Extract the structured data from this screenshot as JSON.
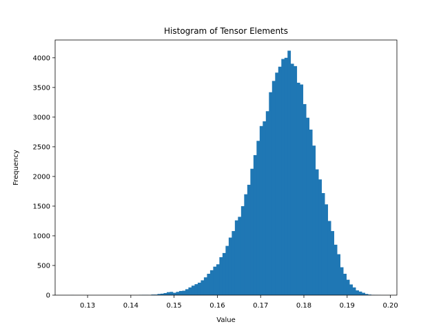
{
  "chart_data": {
    "type": "bar",
    "title": "Histogram of Tensor Elements",
    "xlabel": "Value",
    "ylabel": "Frequency",
    "xlim": [
      0.1225,
      0.2015
    ],
    "ylim": [
      0,
      4300
    ],
    "xticks": [
      0.13,
      0.14,
      0.15,
      0.16,
      0.17,
      0.18,
      0.19,
      0.2
    ],
    "xtick_labels": [
      "0.13",
      "0.14",
      "0.15",
      "0.16",
      "0.17",
      "0.18",
      "0.19",
      "0.20"
    ],
    "yticks": [
      0,
      500,
      1000,
      1500,
      2000,
      2500,
      3000,
      3500,
      4000
    ],
    "yticks_labels": [
      "0",
      "500",
      "1000",
      "1500",
      "2000",
      "2500",
      "3000",
      "3500",
      "4000"
    ],
    "grid": false,
    "color": "#1f77b4",
    "bin_start": 0.1261,
    "bin_width": 0.000716,
    "values": [
      1,
      0,
      0,
      0,
      0,
      0,
      0,
      0,
      0,
      0,
      0,
      0,
      0,
      0,
      0,
      0,
      0,
      0,
      0,
      0,
      0,
      0,
      3,
      5,
      5,
      3,
      10,
      10,
      20,
      25,
      35,
      50,
      55,
      40,
      55,
      70,
      75,
      100,
      130,
      160,
      185,
      210,
      250,
      300,
      360,
      420,
      480,
      520,
      640,
      710,
      830,
      970,
      1080,
      1260,
      1320,
      1500,
      1700,
      1860,
      2130,
      2360,
      2600,
      2850,
      2930,
      3100,
      3420,
      3610,
      3750,
      3850,
      3980,
      4000,
      4120,
      3900,
      3860,
      3580,
      3550,
      3220,
      2990,
      2790,
      2520,
      2120,
      1950,
      1720,
      1530,
      1250,
      1080,
      850,
      690,
      470,
      360,
      260,
      180,
      130,
      80,
      60,
      40,
      20,
      10,
      5,
      3,
      2
    ]
  }
}
